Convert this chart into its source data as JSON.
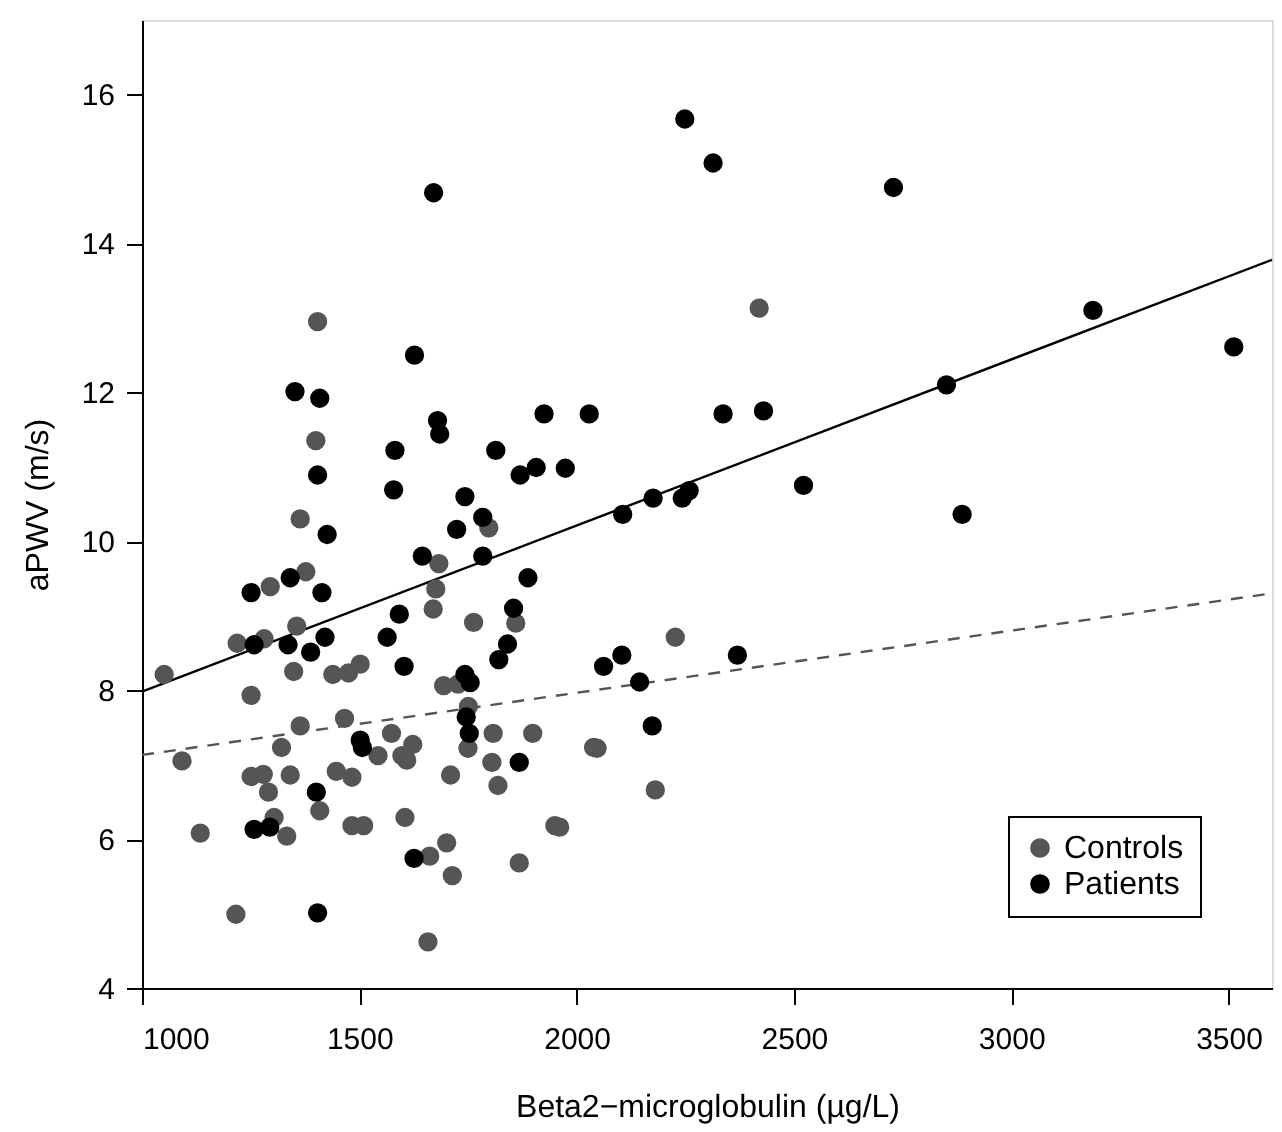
{
  "chart_data": {
    "type": "scatter",
    "xlabel": "Beta2−microglobulin (µg/L)",
    "ylabel": "aPWV (m/s)",
    "xlim": [
      1000,
      3600
    ],
    "xticks": [
      1000,
      1500,
      2000,
      2500,
      3000,
      3500
    ],
    "ylim": [
      4,
      17
    ],
    "yticks": [
      4,
      6,
      8,
      10,
      12,
      14,
      16
    ],
    "grid": false,
    "legend": "bottom right",
    "series": [
      {
        "name": "Controls",
        "color": "#555555",
        "marker": "circle",
        "x": [
          1404,
          1400,
          1364,
          1798,
          1377,
          1295,
          1683,
          1676,
          1670,
          1763,
          1860,
          1356,
          2420,
          2227,
          2047,
          2181,
          1961,
          1051,
          1219,
          1281,
          1349,
          1439,
          1475,
          1502,
          1251,
          1364,
          1466,
          1321,
          1092,
          1251,
          1279,
          1291,
          1341,
          1447,
          1483,
          1574,
          1623,
          1543,
          1598,
          1609,
          1694,
          1727,
          1751,
          1750,
          1808,
          1899,
          1805,
          1819,
          1710,
          1304,
          1333,
          1134,
          1409,
          1483,
          1510,
          1605,
          1701,
          1662,
          1714,
          1868,
          1950,
          1216,
          1658,
          2039
        ],
        "values": [
          12.95,
          11.35,
          10.3,
          10.18,
          9.59,
          9.39,
          9.7,
          9.36,
          9.09,
          8.91,
          8.9,
          8.86,
          13.13,
          8.71,
          7.22,
          6.66,
          6.16,
          8.21,
          8.63,
          8.69,
          8.25,
          8.21,
          8.23,
          8.35,
          7.93,
          7.52,
          7.62,
          7.23,
          7.05,
          6.84,
          6.87,
          6.63,
          6.86,
          6.91,
          6.83,
          7.42,
          7.27,
          7.12,
          7.12,
          7.06,
          8.06,
          8.08,
          7.78,
          7.22,
          7.42,
          7.42,
          7.03,
          6.72,
          6.86,
          6.29,
          6.04,
          6.08,
          6.38,
          6.18,
          6.18,
          6.29,
          5.95,
          5.77,
          5.51,
          5.68,
          6.18,
          4.99,
          4.62,
          7.23
        ]
      },
      {
        "name": "Patients",
        "color": "#000000",
        "marker": "circle",
        "x": [
          1352,
          1409,
          1627,
          1680,
          1685,
          1582,
          1925,
          2029,
          1814,
          1579,
          1404,
          1743,
          1870,
          1907,
          1974,
          1724,
          1784,
          1426,
          1645,
          1784,
          1888,
          1341,
          1251,
          1414,
          1592,
          1855,
          1258,
          1336,
          1388,
          1421,
          1564,
          1603,
          1841,
          1821,
          1743,
          1755,
          1746,
          1753,
          1502,
          1507,
          1868,
          1401,
          1258,
          1294,
          1626,
          1404,
          2062,
          2104,
          2145,
          2174,
          2370,
          2249,
          2314,
          2729,
          3188,
          3512,
          2851,
          2337,
          2430,
          2106,
          2176,
          2243,
          2259,
          2522,
          2887,
          1671
        ],
        "values": [
          12.01,
          11.92,
          12.5,
          11.62,
          11.44,
          11.22,
          11.71,
          11.71,
          11.22,
          10.69,
          10.89,
          10.6,
          10.89,
          10.99,
          10.98,
          10.16,
          10.32,
          10.09,
          9.8,
          9.8,
          9.51,
          9.51,
          9.31,
          9.31,
          9.02,
          9.1,
          8.61,
          8.61,
          8.51,
          8.71,
          8.71,
          8.32,
          8.62,
          8.41,
          8.21,
          8.1,
          7.64,
          7.42,
          7.33,
          7.23,
          7.03,
          6.63,
          6.13,
          6.16,
          5.74,
          5.01,
          8.32,
          8.47,
          8.11,
          7.52,
          8.47,
          15.67,
          15.08,
          14.75,
          13.1,
          12.61,
          12.1,
          11.71,
          11.75,
          10.36,
          10.58,
          10.58,
          10.68,
          10.75,
          10.36,
          14.68
        ]
      },
      {
        "type": "line",
        "color": "#555555",
        "line_style": "dashed",
        "marker": "none",
        "x": [
          1000,
          3600
        ],
        "values": [
          7.13,
          9.3
        ]
      },
      {
        "type": "line",
        "color": "#000000",
        "line_style": "solid",
        "marker": "none",
        "x": [
          1000,
          3600
        ],
        "values": [
          7.98,
          13.78
        ]
      }
    ]
  }
}
